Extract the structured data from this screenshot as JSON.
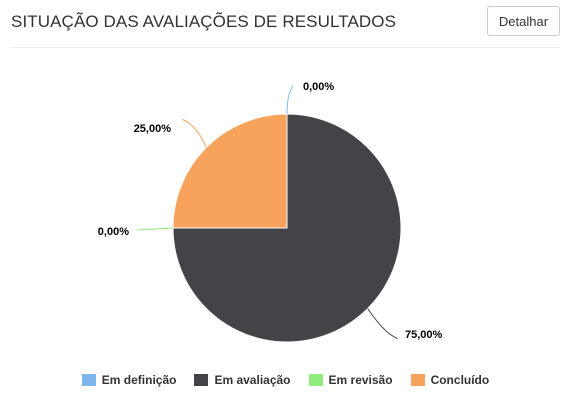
{
  "header": {
    "title": "SITUAÇÃO DAS AVALIAÇÕES DE RESULTADOS",
    "detail_button_label": "Detalhar"
  },
  "chart_data": {
    "type": "pie",
    "title": "",
    "categories": [
      "Em definição",
      "Em avaliação",
      "Em revisão",
      "Concluído"
    ],
    "values": [
      0,
      75,
      0,
      25
    ],
    "data_labels": [
      "0,00%",
      "75,00%",
      "0,00%",
      "25,00%"
    ],
    "colors": [
      "#7cb5ec",
      "#434348",
      "#90ed7d",
      "#f7a35c"
    ],
    "legend_position": "bottom",
    "start_angle": "top (12 o'clock), clockwise"
  }
}
